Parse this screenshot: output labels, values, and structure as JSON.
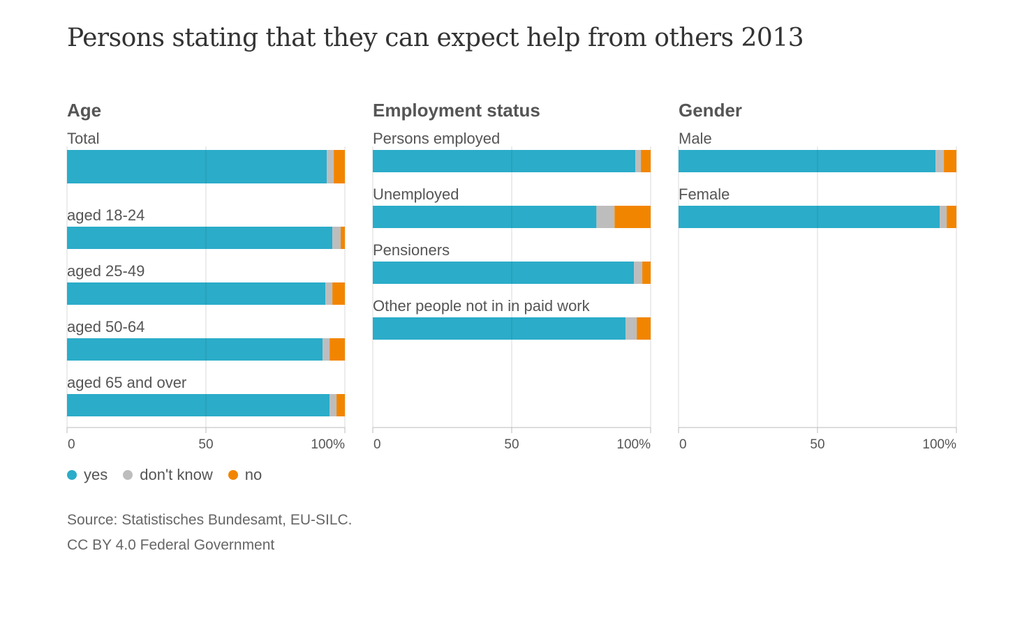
{
  "chart_data": {
    "type": "bar",
    "orientation": "horizontal",
    "stacked": true,
    "title": "Persons stating that they can expect help from others 2013",
    "xlim": [
      0,
      100
    ],
    "xticks": [
      0,
      50,
      100
    ],
    "xtick_labels": [
      "0",
      "50",
      "100%"
    ],
    "grid": true,
    "legend_position": "bottom-left",
    "series": [
      {
        "name": "yes",
        "color": "#2bacc9"
      },
      {
        "name": "don't know",
        "color": "#bdbdbd"
      },
      {
        "name": "no",
        "color": "#f28500"
      }
    ],
    "panels": [
      {
        "title": "Age",
        "categories": [
          "Total",
          "aged 18-24",
          "aged 25-49",
          "aged 50-64",
          "aged 65 and over"
        ],
        "yes": [
          93.5,
          95.5,
          93,
          92,
          94.5
        ],
        "dont_know": [
          2.5,
          3,
          2.5,
          2.5,
          2.5
        ],
        "no": [
          4,
          1.5,
          4.5,
          5.5,
          3
        ]
      },
      {
        "title": "Employment status",
        "categories": [
          "Persons employed",
          "Unemployed",
          "Pensioners",
          "Other people not in in paid work"
        ],
        "yes": [
          94.5,
          80.5,
          94,
          91
        ],
        "dont_know": [
          2,
          6.5,
          3,
          4
        ],
        "no": [
          3.5,
          13,
          3,
          5
        ]
      },
      {
        "title": "Gender",
        "categories": [
          "Male",
          "Female"
        ],
        "yes": [
          92.5,
          94
        ],
        "dont_know": [
          3,
          2.5
        ],
        "no": [
          4.5,
          3.5
        ]
      }
    ]
  },
  "source": {
    "line1": "Source: Statistisches Bundesamt, EU-SILC.",
    "line2": "CC BY 4.0 Federal Government"
  }
}
